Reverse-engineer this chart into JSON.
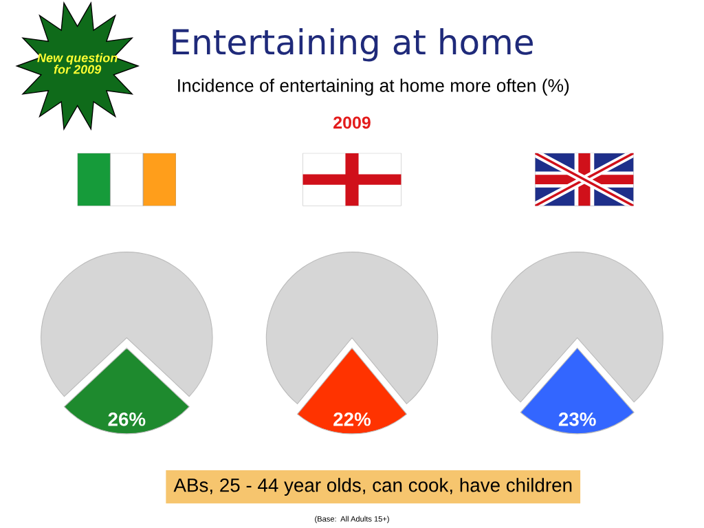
{
  "chart_data": [
    {
      "type": "pie",
      "title": "Entertaining at home",
      "subtitle": "Incidence of entertaining at home more often (%)",
      "categories": [
        null,
        null
      ],
      "values": [
        26,
        74
      ],
      "colors": [
        "#1e8a2e",
        "#d6d6d6"
      ],
      "value_labels": [
        "26%",
        null
      ],
      "annotations": [
        "2009",
        "New question for 2009",
        "ABs, 25 - 44 year olds, can cook, have children",
        "(Base:  All Adults 15+)"
      ]
    },
    {
      "type": "pie",
      "categories": [
        null,
        null
      ],
      "values": [
        22,
        78
      ],
      "colors": [
        "#ff3300",
        "#d6d6d6"
      ],
      "value_labels": [
        "22%",
        null
      ]
    },
    {
      "type": "pie",
      "categories": [
        null,
        null
      ],
      "values": [
        23,
        77
      ],
      "colors": [
        "#3366ff",
        "#d6d6d6"
      ],
      "value_labels": [
        "23%",
        null
      ]
    }
  ]
}
